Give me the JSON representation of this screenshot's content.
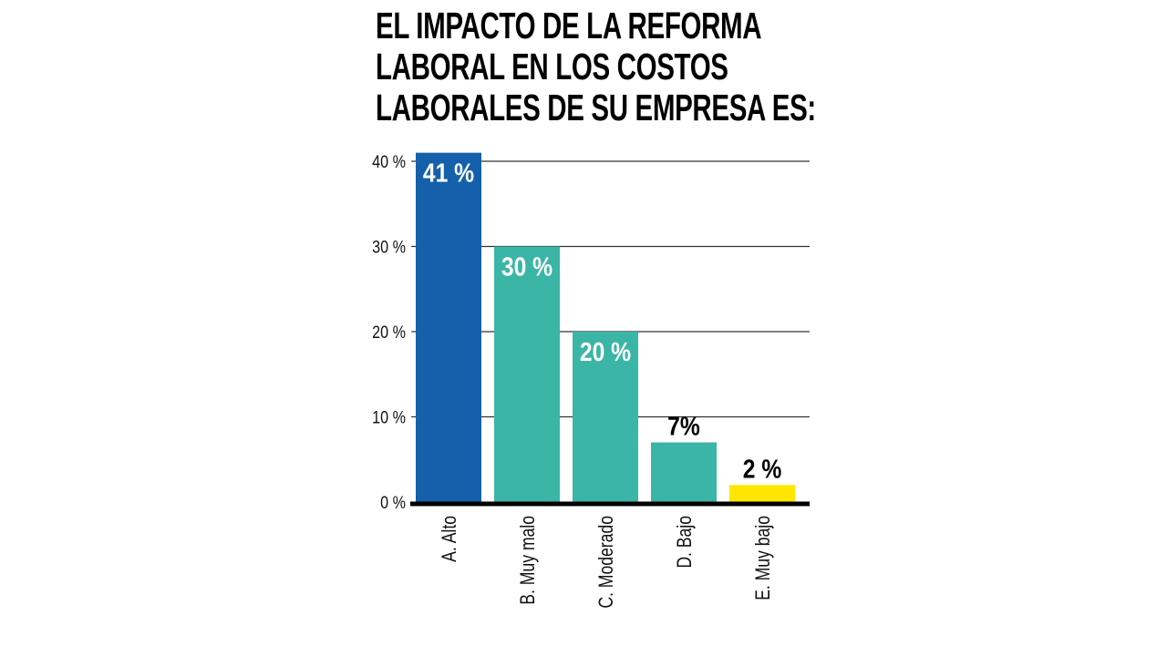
{
  "chart_data": {
    "type": "bar",
    "title_lines": [
      "EL IMPACTO DE LA REFORMA",
      "LABORAL EN LOS COSTOS",
      "LABORALES DE SU EMPRESA ES:"
    ],
    "categories": [
      "A. Alto",
      "B. Muy malo",
      "C. Moderado",
      "D. Bajo",
      "E. Muy bajo"
    ],
    "values": [
      41,
      30,
      20,
      7,
      2
    ],
    "value_labels": [
      "41 %",
      "30 %",
      "20 %",
      "7%",
      "2 %"
    ],
    "colors": [
      "#1560AA",
      "#3BB5A6",
      "#3BB5A6",
      "#3BB5A6",
      "#FFE600"
    ],
    "label_inside": [
      true,
      true,
      true,
      false,
      false
    ],
    "y_ticks": [
      0,
      10,
      20,
      30,
      40
    ],
    "y_tick_labels": [
      "0 %",
      "10 %",
      "20 %",
      "30 %",
      "40 %"
    ],
    "ylim": [
      0,
      41
    ],
    "grid": true,
    "xlabel": "",
    "ylabel": ""
  }
}
